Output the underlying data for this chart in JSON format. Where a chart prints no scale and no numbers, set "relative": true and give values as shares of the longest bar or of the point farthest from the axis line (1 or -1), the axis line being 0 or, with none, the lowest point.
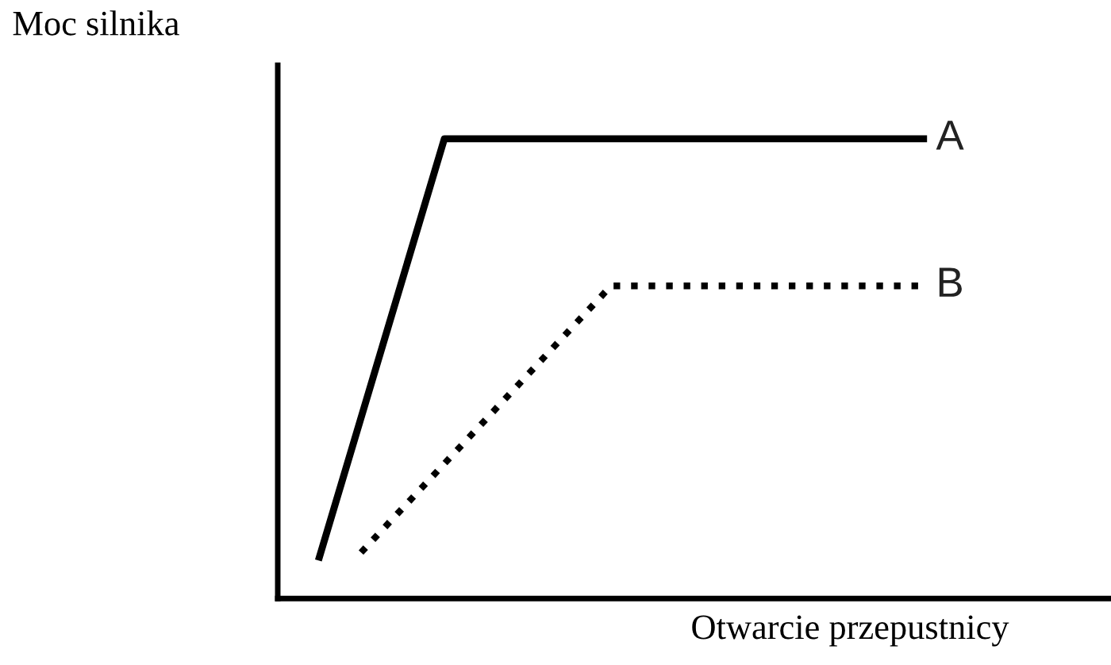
{
  "chart_data": {
    "type": "line",
    "relative": true,
    "ylabel": "Moc silnika",
    "xlabel": "Otwarcie przepustnicy",
    "marker": "none",
    "categories": [
      null,
      null,
      null,
      null,
      null,
      null,
      null,
      null,
      null,
      null,
      null,
      null,
      null,
      null,
      null,
      null,
      null,
      null,
      null,
      null,
      null,
      null,
      null,
      null,
      null,
      null,
      null,
      null,
      null,
      null,
      null,
      null
    ],
    "series": [
      {
        "name": "A",
        "color": "#000000",
        "line_style": "solid",
        "values": [
          null,
          null,
          0.09,
          null,
          null,
          null,
          null,
          null,
          1,
          null,
          null,
          null,
          null,
          null,
          null,
          null,
          null,
          null,
          null,
          null,
          null,
          null,
          null,
          null,
          null,
          null,
          null,
          null,
          null,
          null,
          null,
          1
        ]
      },
      {
        "name": "B",
        "color": "#000000",
        "line_style": "dotted",
        "values": [
          null,
          null,
          null,
          null,
          0.1,
          null,
          null,
          null,
          null,
          null,
          null,
          null,
          null,
          null,
          null,
          null,
          0.68,
          null,
          null,
          null,
          null,
          null,
          null,
          null,
          null,
          null,
          null,
          null,
          null,
          null,
          null,
          0.68
        ]
      }
    ]
  }
}
